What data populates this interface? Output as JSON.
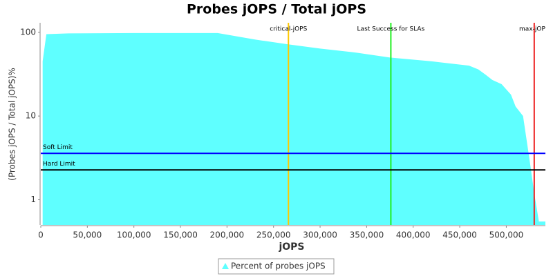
{
  "chart_data": {
    "type": "area",
    "title": "Probes jOPS / Total jOPS",
    "x_label": "jOPS",
    "y_label": "(Probes jOPS / Total jOPS)%",
    "log_y": true,
    "xlim": [
      0,
      542000
    ],
    "xticks": [
      0,
      {
        "value": 50000,
        "label": "50,000"
      },
      {
        "value": 100000,
        "label": "100,000"
      },
      {
        "value": 150000,
        "label": "150,000"
      },
      {
        "value": 200000,
        "label": "200,000"
      },
      {
        "value": 250000,
        "label": "250,000"
      },
      {
        "value": 300000,
        "label": "300,000"
      },
      {
        "value": 350000,
        "label": "350,000"
      },
      {
        "value": 400000,
        "label": "400,000"
      },
      {
        "value": 450000,
        "label": "450,000"
      },
      {
        "value": 500000,
        "label": "500,000"
      }
    ],
    "ylim": [
      0.5,
      130
    ],
    "yticks": [
      1,
      10,
      100
    ],
    "series": [
      {
        "name": "Percent of probes jOPS",
        "color": "#5fffff",
        "x": [
          2000,
          6000,
          30000,
          100000,
          190000,
          230000,
          265000,
          300000,
          340000,
          375000,
          420000,
          460000,
          470000,
          478000,
          485000,
          495000,
          505000,
          510000,
          518000,
          525000,
          530000,
          535000,
          542000
        ],
        "values": [
          45,
          95,
          97,
          98,
          98,
          82,
          72,
          64,
          57,
          50,
          45,
          40,
          36,
          31,
          27,
          24,
          18,
          13,
          10,
          3,
          1.2,
          0.55,
          0.55
        ]
      }
    ],
    "vlines": [
      {
        "label": "critical-jOPS",
        "value": 266000,
        "color": "#ffc800"
      },
      {
        "label": "Last Success for SLAs",
        "value": 376000,
        "color": "#22ee22"
      },
      {
        "label": "max-jOPS",
        "value": 530000,
        "color": "#ee2222"
      }
    ],
    "hlines": [
      {
        "label": "Soft Limit",
        "value": 3.58,
        "color": "#0000ff"
      },
      {
        "label": "Hard Limit",
        "value": 2.27,
        "color": "#000000"
      }
    ]
  }
}
